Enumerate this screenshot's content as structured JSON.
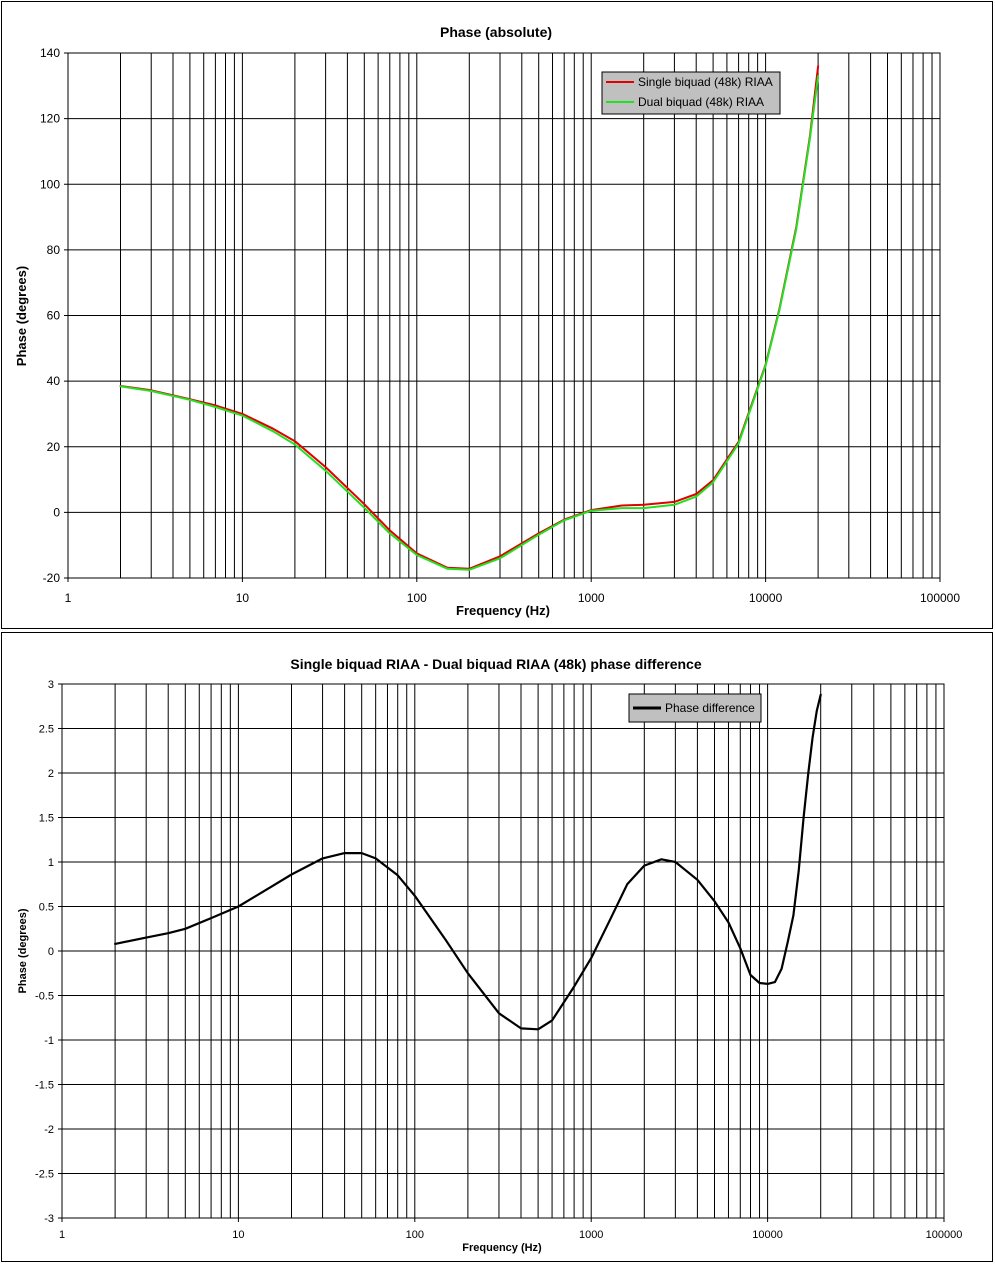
{
  "chart_data": [
    {
      "type": "line",
      "title": "Phase (absolute)",
      "xlabel": "Frequency (Hz)",
      "ylabel": "Phase (degrees)",
      "xscale": "log",
      "xlim": [
        1,
        100000
      ],
      "ylim": [
        -20,
        140
      ],
      "xticks": [
        "1",
        "10",
        "100",
        "1000",
        "10000",
        "100000"
      ],
      "yticks": [
        "-20",
        "0",
        "20",
        "40",
        "60",
        "80",
        "100",
        "120",
        "140"
      ],
      "grid": true,
      "legend_position": "top-right",
      "series": [
        {
          "name": "Single biquad (48k) RIAA",
          "color": "#e00000",
          "x": [
            2,
            3,
            5,
            7,
            10,
            15,
            20,
            30,
            50,
            70,
            100,
            150,
            200,
            300,
            500,
            700,
            1000,
            1500,
            2000,
            3000,
            4000,
            5000,
            7000,
            10000,
            12000,
            15000,
            18000,
            20000
          ],
          "y": [
            38.5,
            37.2,
            34.5,
            32.6,
            30.0,
            25.5,
            21.7,
            13.8,
            2.5,
            -5.5,
            -12.5,
            -16.9,
            -17.2,
            -13.4,
            -6.4,
            -2.2,
            0.7,
            2.1,
            2.3,
            3.2,
            5.6,
            9.8,
            21.5,
            45.0,
            62.0,
            87.0,
            115.0,
            136.0
          ]
        },
        {
          "name": "Dual biquad (48k) RIAA",
          "color": "#22e022",
          "x": [
            2,
            3,
            5,
            7,
            10,
            15,
            20,
            30,
            50,
            70,
            100,
            150,
            200,
            300,
            500,
            700,
            1000,
            1500,
            2000,
            3000,
            4000,
            5000,
            7000,
            10000,
            12000,
            15000,
            18000,
            20000
          ],
          "y": [
            38.4,
            37.0,
            34.3,
            32.1,
            29.5,
            24.7,
            20.7,
            12.7,
            1.4,
            -6.4,
            -13.0,
            -17.2,
            -17.5,
            -14.0,
            -6.8,
            -2.4,
            0.5,
            1.3,
            1.3,
            2.3,
            4.8,
            9.2,
            21.0,
            44.7,
            61.6,
            86.4,
            114.3,
            133.0
          ]
        }
      ]
    },
    {
      "type": "line",
      "title": "Single biquad RIAA - Dual biquad RIAA (48k) phase difference",
      "xlabel": "Frequency (Hz)",
      "ylabel": "Phase (degrees)",
      "xscale": "log",
      "xlim": [
        1,
        100000
      ],
      "ylim": [
        -3,
        3
      ],
      "xticks": [
        "1",
        "10",
        "100",
        "1000",
        "10000",
        "100000"
      ],
      "yticks": [
        "-3",
        "-2.5",
        "-2",
        "-1.5",
        "-1",
        "-0.5",
        "0",
        "0.5",
        "1",
        "1.5",
        "2",
        "2.5",
        "3"
      ],
      "grid": true,
      "legend_position": "top-right",
      "series": [
        {
          "name": "Phase difference",
          "color": "#000000",
          "x": [
            2,
            3,
            4,
            5,
            7,
            10,
            15,
            20,
            30,
            40,
            50,
            60,
            80,
            100,
            150,
            200,
            300,
            400,
            500,
            600,
            800,
            1000,
            1300,
            1600,
            2000,
            2500,
            3000,
            4000,
            5000,
            6000,
            7000,
            8000,
            9000,
            10000,
            11000,
            12000,
            13000,
            14000,
            15000,
            16000,
            17000,
            18000,
            19000,
            20000
          ],
          "y": [
            0.08,
            0.15,
            0.2,
            0.25,
            0.37,
            0.5,
            0.71,
            0.86,
            1.04,
            1.1,
            1.1,
            1.04,
            0.85,
            0.62,
            0.12,
            -0.25,
            -0.7,
            -0.87,
            -0.88,
            -0.78,
            -0.4,
            -0.08,
            0.38,
            0.75,
            0.96,
            1.03,
            1.0,
            0.8,
            0.56,
            0.32,
            0.03,
            -0.27,
            -0.36,
            -0.37,
            -0.35,
            -0.2,
            0.1,
            0.4,
            0.9,
            1.5,
            2.0,
            2.4,
            2.7,
            2.88
          ]
        }
      ]
    }
  ]
}
